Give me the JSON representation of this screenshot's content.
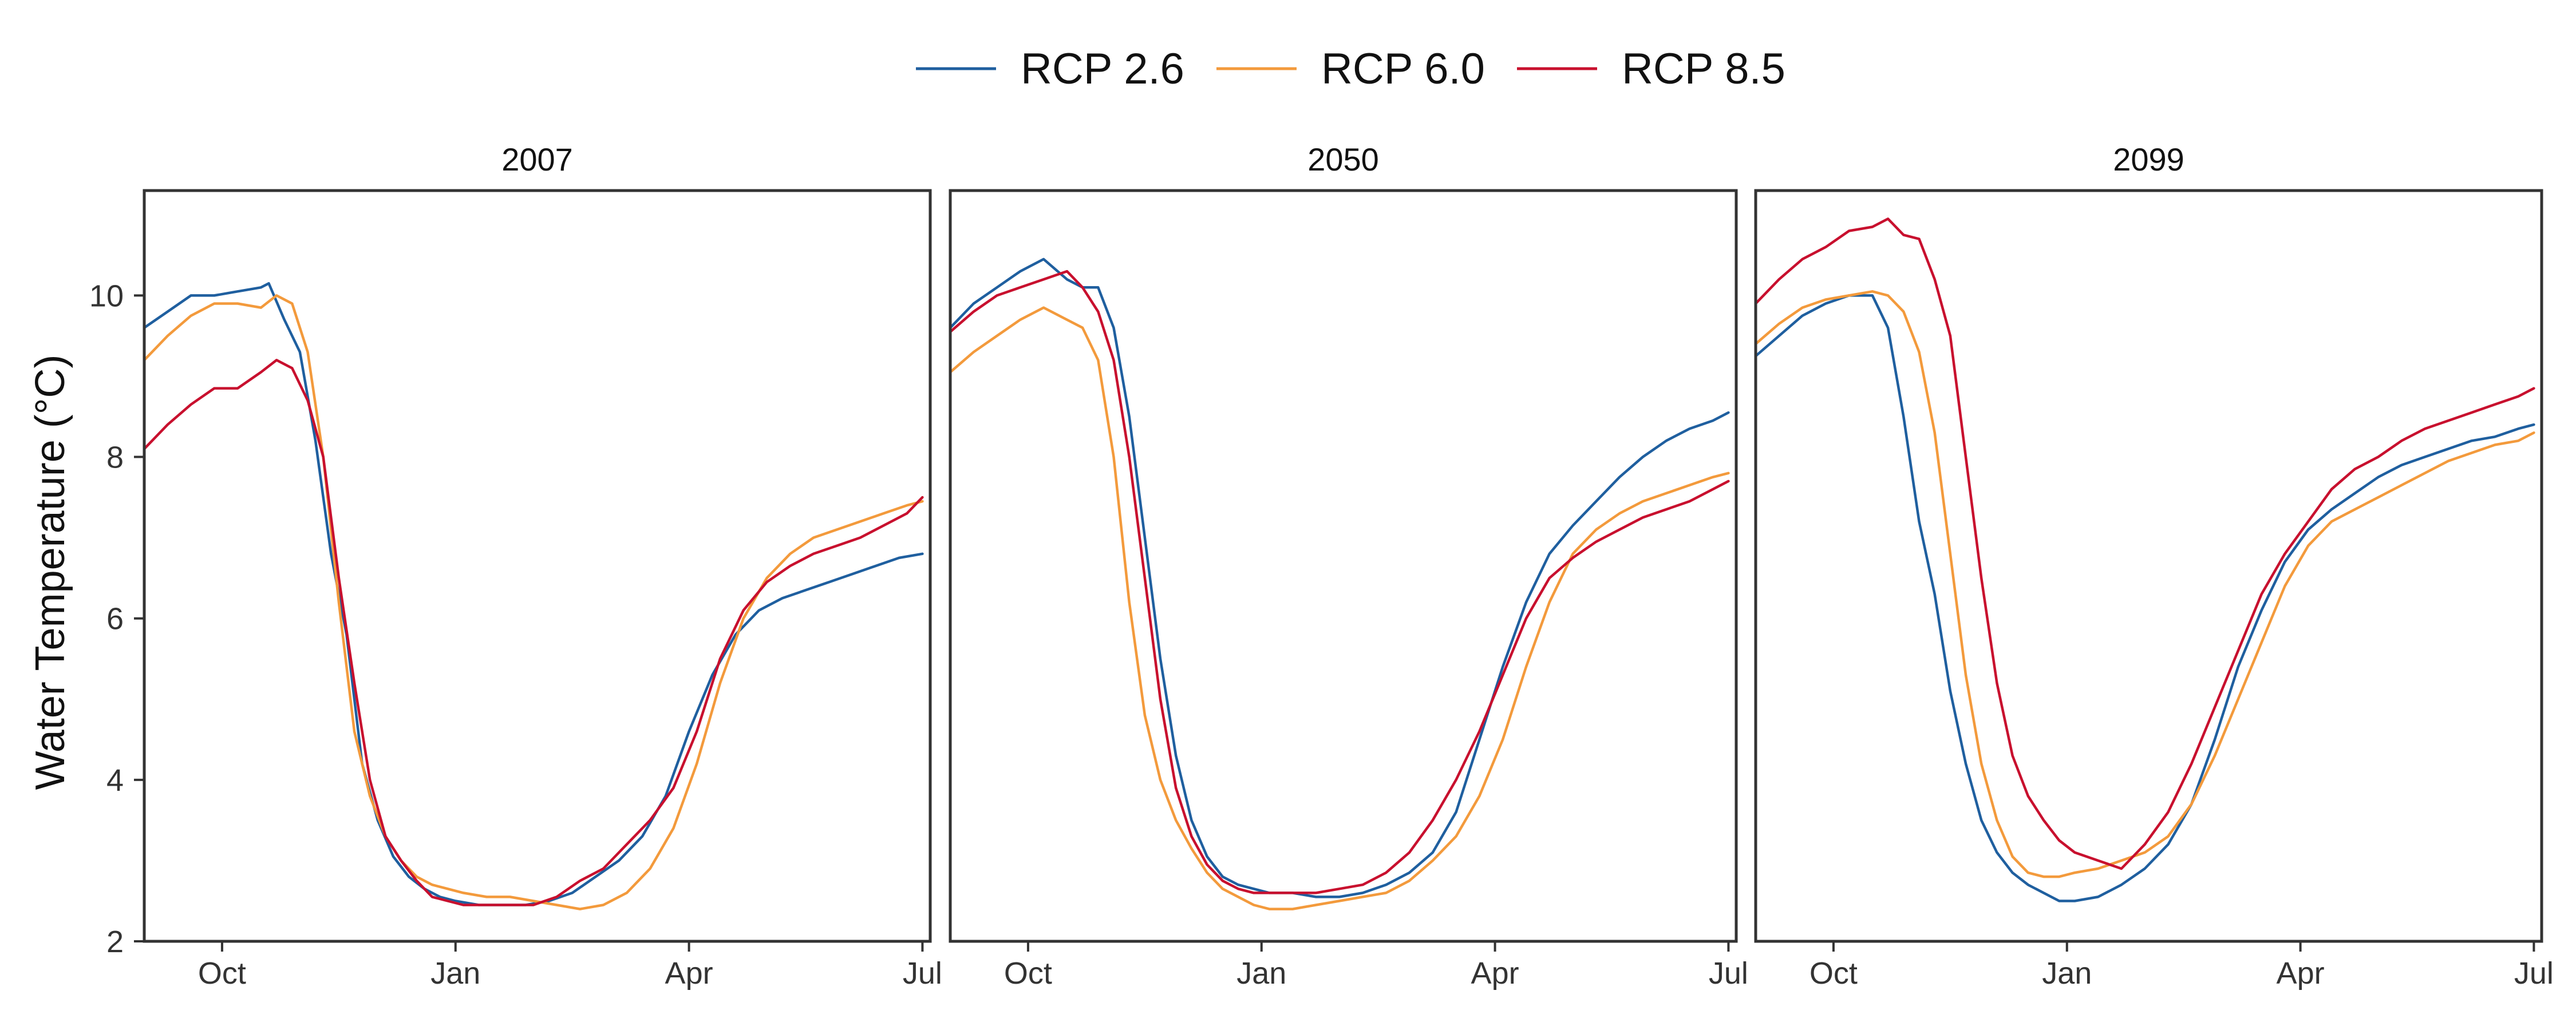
{
  "chart_data": {
    "type": "line",
    "layout": "facets",
    "legend_position": "top",
    "grid": false,
    "ylabel": "Water Temperature (°C)",
    "ylim": [
      2,
      11.3
    ],
    "yticks": [
      2,
      4,
      6,
      8,
      10
    ],
    "xlim": [
      -1,
      9.1
    ],
    "x_unit": "months since October",
    "xticks": [
      {
        "value": 0,
        "label": "Oct"
      },
      {
        "value": 3,
        "label": "Jan"
      },
      {
        "value": 6,
        "label": "Apr"
      },
      {
        "value": 9,
        "label": "Jul"
      }
    ],
    "colors": {
      "RCP 2.6": "#1f5f9f",
      "RCP 6.0": "#f39a3c",
      "RCP 8.5": "#c8102e"
    },
    "legend": [
      "RCP 2.6",
      "RCP 6.0",
      "RCP 8.5"
    ],
    "facets": [
      {
        "title": "2007",
        "series": [
          {
            "name": "RCP 2.6",
            "x": [
              -1.0,
              -0.7,
              -0.4,
              -0.1,
              0.2,
              0.5,
              0.6,
              0.8,
              1.0,
              1.2,
              1.4,
              1.6,
              1.8,
              2.0,
              2.2,
              2.4,
              2.6,
              2.8,
              3.0,
              3.3,
              3.6,
              3.9,
              4.2,
              4.5,
              4.8,
              5.1,
              5.4,
              5.7,
              6.0,
              6.3,
              6.6,
              6.9,
              7.2,
              7.5,
              7.8,
              8.1,
              8.4,
              8.7,
              9.0
            ],
            "y": [
              9.6,
              9.8,
              10.0,
              10.0,
              10.05,
              10.1,
              10.15,
              9.7,
              9.3,
              8.2,
              6.8,
              5.8,
              4.2,
              3.5,
              3.05,
              2.8,
              2.65,
              2.55,
              2.5,
              2.45,
              2.45,
              2.45,
              2.5,
              2.6,
              2.8,
              3.0,
              3.3,
              3.8,
              4.6,
              5.3,
              5.8,
              6.1,
              6.25,
              6.35,
              6.45,
              6.55,
              6.65,
              6.75,
              6.8
            ]
          },
          {
            "name": "RCP 6.0",
            "x": [
              -1.0,
              -0.7,
              -0.4,
              -0.1,
              0.2,
              0.5,
              0.7,
              0.9,
              1.1,
              1.3,
              1.5,
              1.7,
              1.9,
              2.1,
              2.3,
              2.5,
              2.7,
              2.9,
              3.1,
              3.4,
              3.7,
              4.0,
              4.3,
              4.6,
              4.9,
              5.2,
              5.5,
              5.8,
              6.1,
              6.4,
              6.7,
              7.0,
              7.3,
              7.6,
              7.9,
              8.2,
              8.5,
              8.8,
              9.0
            ],
            "y": [
              9.2,
              9.5,
              9.75,
              9.9,
              9.9,
              9.85,
              10.0,
              9.9,
              9.3,
              8.0,
              6.2,
              4.6,
              3.8,
              3.3,
              3.0,
              2.8,
              2.7,
              2.65,
              2.6,
              2.55,
              2.55,
              2.5,
              2.45,
              2.4,
              2.45,
              2.6,
              2.9,
              3.4,
              4.2,
              5.2,
              6.0,
              6.5,
              6.8,
              7.0,
              7.1,
              7.2,
              7.3,
              7.4,
              7.45
            ]
          },
          {
            "name": "RCP 8.5",
            "x": [
              -1.0,
              -0.7,
              -0.4,
              -0.1,
              0.2,
              0.5,
              0.7,
              0.9,
              1.1,
              1.3,
              1.5,
              1.7,
              1.9,
              2.1,
              2.3,
              2.5,
              2.7,
              2.9,
              3.1,
              3.4,
              3.7,
              4.0,
              4.3,
              4.6,
              4.9,
              5.2,
              5.5,
              5.8,
              6.1,
              6.4,
              6.7,
              7.0,
              7.3,
              7.6,
              7.9,
              8.2,
              8.5,
              8.8,
              9.0
            ],
            "y": [
              8.1,
              8.4,
              8.65,
              8.85,
              8.85,
              9.05,
              9.2,
              9.1,
              8.7,
              8.0,
              6.5,
              5.2,
              4.0,
              3.3,
              3.0,
              2.75,
              2.55,
              2.5,
              2.45,
              2.45,
              2.45,
              2.45,
              2.55,
              2.75,
              2.9,
              3.2,
              3.5,
              3.9,
              4.6,
              5.5,
              6.1,
              6.45,
              6.65,
              6.8,
              6.9,
              7.0,
              7.15,
              7.3,
              7.5
            ]
          }
        ]
      },
      {
        "title": "2050",
        "series": [
          {
            "name": "RCP 2.6",
            "x": [
              -1.0,
              -0.7,
              -0.4,
              -0.1,
              0.2,
              0.5,
              0.7,
              0.9,
              1.1,
              1.3,
              1.5,
              1.7,
              1.9,
              2.1,
              2.3,
              2.5,
              2.7,
              2.9,
              3.1,
              3.4,
              3.7,
              4.0,
              4.3,
              4.6,
              4.9,
              5.2,
              5.5,
              5.8,
              6.1,
              6.4,
              6.7,
              7.0,
              7.3,
              7.6,
              7.9,
              8.2,
              8.5,
              8.8,
              9.0
            ],
            "y": [
              9.6,
              9.9,
              10.1,
              10.3,
              10.45,
              10.2,
              10.1,
              10.1,
              9.6,
              8.5,
              7.0,
              5.5,
              4.3,
              3.5,
              3.05,
              2.8,
              2.7,
              2.65,
              2.6,
              2.6,
              2.55,
              2.55,
              2.6,
              2.7,
              2.85,
              3.1,
              3.6,
              4.5,
              5.4,
              6.2,
              6.8,
              7.15,
              7.45,
              7.75,
              8.0,
              8.2,
              8.35,
              8.45,
              8.55
            ]
          },
          {
            "name": "RCP 6.0",
            "x": [
              -1.0,
              -0.7,
              -0.4,
              -0.1,
              0.2,
              0.5,
              0.7,
              0.9,
              1.1,
              1.3,
              1.5,
              1.7,
              1.9,
              2.1,
              2.3,
              2.5,
              2.7,
              2.9,
              3.1,
              3.4,
              3.7,
              4.0,
              4.3,
              4.6,
              4.9,
              5.2,
              5.5,
              5.8,
              6.1,
              6.4,
              6.7,
              7.0,
              7.3,
              7.6,
              7.9,
              8.2,
              8.5,
              8.8,
              9.0
            ],
            "y": [
              9.05,
              9.3,
              9.5,
              9.7,
              9.85,
              9.7,
              9.6,
              9.2,
              8.0,
              6.2,
              4.8,
              4.0,
              3.5,
              3.15,
              2.85,
              2.65,
              2.55,
              2.45,
              2.4,
              2.4,
              2.45,
              2.5,
              2.55,
              2.6,
              2.75,
              3.0,
              3.3,
              3.8,
              4.5,
              5.4,
              6.2,
              6.8,
              7.1,
              7.3,
              7.45,
              7.55,
              7.65,
              7.75,
              7.8
            ]
          },
          {
            "name": "RCP 8.5",
            "x": [
              -1.0,
              -0.7,
              -0.4,
              -0.1,
              0.2,
              0.5,
              0.7,
              0.9,
              1.1,
              1.3,
              1.5,
              1.7,
              1.9,
              2.1,
              2.3,
              2.5,
              2.7,
              2.9,
              3.1,
              3.4,
              3.7,
              4.0,
              4.3,
              4.6,
              4.9,
              5.2,
              5.5,
              5.8,
              6.1,
              6.4,
              6.7,
              7.0,
              7.3,
              7.6,
              7.9,
              8.2,
              8.5,
              8.8,
              9.0
            ],
            "y": [
              9.55,
              9.8,
              10.0,
              10.1,
              10.2,
              10.3,
              10.1,
              9.8,
              9.2,
              8.0,
              6.5,
              5.0,
              3.9,
              3.3,
              2.95,
              2.75,
              2.65,
              2.6,
              2.6,
              2.6,
              2.6,
              2.65,
              2.7,
              2.85,
              3.1,
              3.5,
              4.0,
              4.6,
              5.3,
              6.0,
              6.5,
              6.75,
              6.95,
              7.1,
              7.25,
              7.35,
              7.45,
              7.6,
              7.7
            ]
          }
        ]
      },
      {
        "title": "2099",
        "series": [
          {
            "name": "RCP 2.6",
            "x": [
              -1.0,
              -0.7,
              -0.4,
              -0.1,
              0.2,
              0.5,
              0.7,
              0.9,
              1.1,
              1.3,
              1.5,
              1.7,
              1.9,
              2.1,
              2.3,
              2.5,
              2.7,
              2.9,
              3.1,
              3.4,
              3.7,
              4.0,
              4.3,
              4.6,
              4.9,
              5.2,
              5.5,
              5.8,
              6.1,
              6.4,
              6.7,
              7.0,
              7.3,
              7.6,
              7.9,
              8.2,
              8.5,
              8.8,
              9.0
            ],
            "y": [
              9.25,
              9.5,
              9.75,
              9.9,
              10.0,
              10.0,
              9.6,
              8.5,
              7.2,
              6.3,
              5.1,
              4.2,
              3.5,
              3.1,
              2.85,
              2.7,
              2.6,
              2.5,
              2.5,
              2.55,
              2.7,
              2.9,
              3.2,
              3.7,
              4.5,
              5.4,
              6.1,
              6.7,
              7.1,
              7.35,
              7.55,
              7.75,
              7.9,
              8.0,
              8.1,
              8.2,
              8.25,
              8.35,
              8.4
            ]
          },
          {
            "name": "RCP 6.0",
            "x": [
              -1.0,
              -0.7,
              -0.4,
              -0.1,
              0.2,
              0.5,
              0.7,
              0.9,
              1.1,
              1.3,
              1.5,
              1.7,
              1.9,
              2.1,
              2.3,
              2.5,
              2.7,
              2.9,
              3.1,
              3.4,
              3.7,
              4.0,
              4.3,
              4.6,
              4.9,
              5.2,
              5.5,
              5.8,
              6.1,
              6.4,
              6.7,
              7.0,
              7.3,
              7.6,
              7.9,
              8.2,
              8.5,
              8.8,
              9.0
            ],
            "y": [
              9.4,
              9.65,
              9.85,
              9.95,
              10.0,
              10.05,
              10.0,
              9.8,
              9.3,
              8.3,
              6.8,
              5.3,
              4.2,
              3.5,
              3.05,
              2.85,
              2.8,
              2.8,
              2.85,
              2.9,
              3.0,
              3.1,
              3.3,
              3.7,
              4.3,
              5.0,
              5.7,
              6.4,
              6.9,
              7.2,
              7.35,
              7.5,
              7.65,
              7.8,
              7.95,
              8.05,
              8.15,
              8.2,
              8.3
            ]
          },
          {
            "name": "RCP 8.5",
            "x": [
              -1.0,
              -0.7,
              -0.4,
              -0.1,
              0.2,
              0.5,
              0.7,
              0.9,
              1.1,
              1.3,
              1.5,
              1.7,
              1.9,
              2.1,
              2.3,
              2.5,
              2.7,
              2.9,
              3.1,
              3.4,
              3.7,
              4.0,
              4.3,
              4.6,
              4.9,
              5.2,
              5.5,
              5.8,
              6.1,
              6.4,
              6.7,
              7.0,
              7.3,
              7.6,
              7.9,
              8.2,
              8.5,
              8.8,
              9.0
            ],
            "y": [
              9.9,
              10.2,
              10.45,
              10.6,
              10.8,
              10.85,
              10.95,
              10.75,
              10.7,
              10.2,
              9.5,
              8.0,
              6.5,
              5.2,
              4.3,
              3.8,
              3.5,
              3.25,
              3.1,
              3.0,
              2.9,
              3.2,
              3.6,
              4.2,
              4.9,
              5.6,
              6.3,
              6.8,
              7.2,
              7.6,
              7.85,
              8.0,
              8.2,
              8.35,
              8.45,
              8.55,
              8.65,
              8.75,
              8.85
            ]
          }
        ]
      }
    ]
  }
}
